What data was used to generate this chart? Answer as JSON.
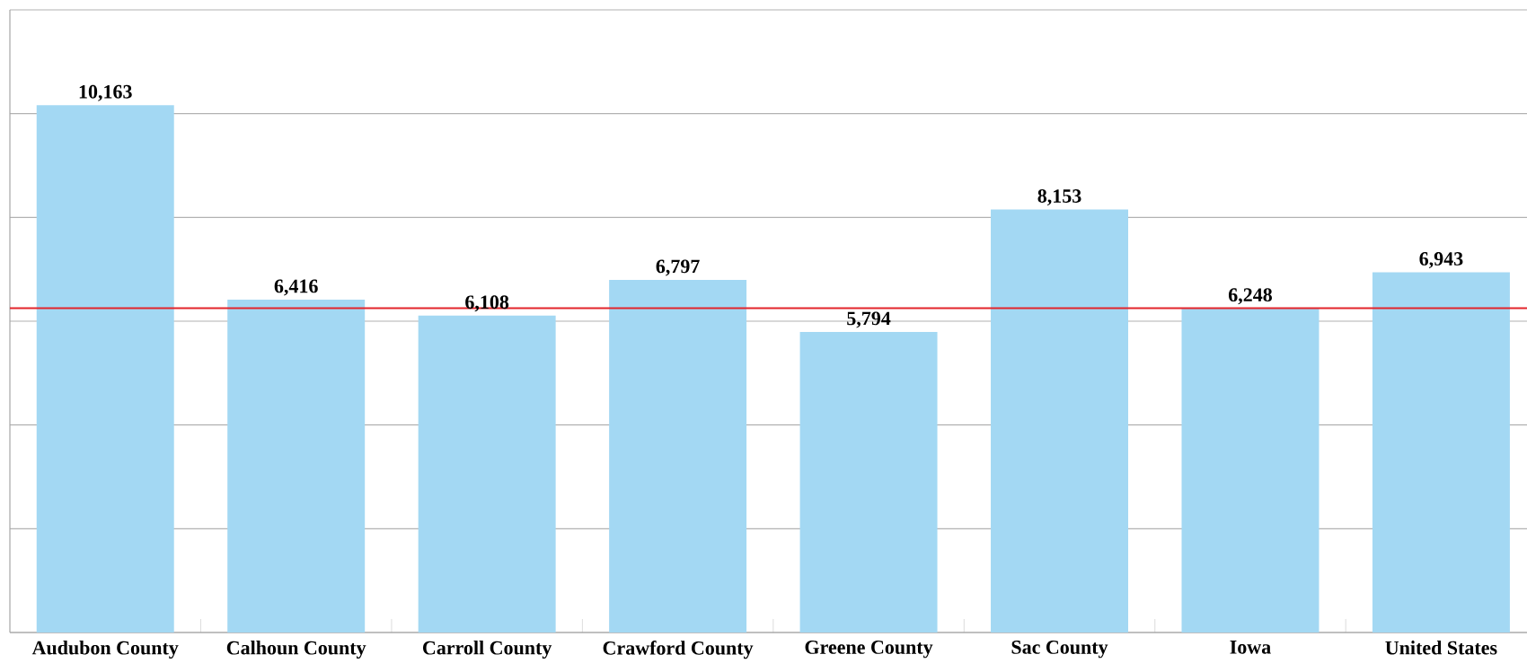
{
  "chart_data": {
    "type": "bar",
    "categories": [
      "Audubon County",
      "Calhoun County",
      "Carroll County",
      "Crawford County",
      "Greene County",
      "Sac County",
      "Iowa",
      "United States"
    ],
    "values": [
      10163,
      6416,
      6108,
      6797,
      5794,
      8153,
      6248,
      6943
    ],
    "value_labels": [
      "10,163",
      "6,416",
      "6,108",
      "6,797",
      "5,794",
      "8,153",
      "6,248",
      "6,943"
    ],
    "color": "#a3d8f3",
    "ylim": [
      0,
      12000
    ],
    "yticks": [
      {
        "value": 0,
        "label": null
      },
      {
        "value": 2000,
        "label": null
      },
      {
        "value": 4000,
        "label": null
      },
      {
        "value": 6000,
        "label": null
      },
      {
        "value": 8000,
        "label": null
      },
      {
        "value": 10000,
        "label": null
      },
      {
        "value": 12000,
        "label": null
      }
    ],
    "tick_labels": "x",
    "grid": "y",
    "ref_lines": [
      {
        "axis": "y",
        "value": 6250,
        "color": "#e3242b"
      }
    ]
  }
}
